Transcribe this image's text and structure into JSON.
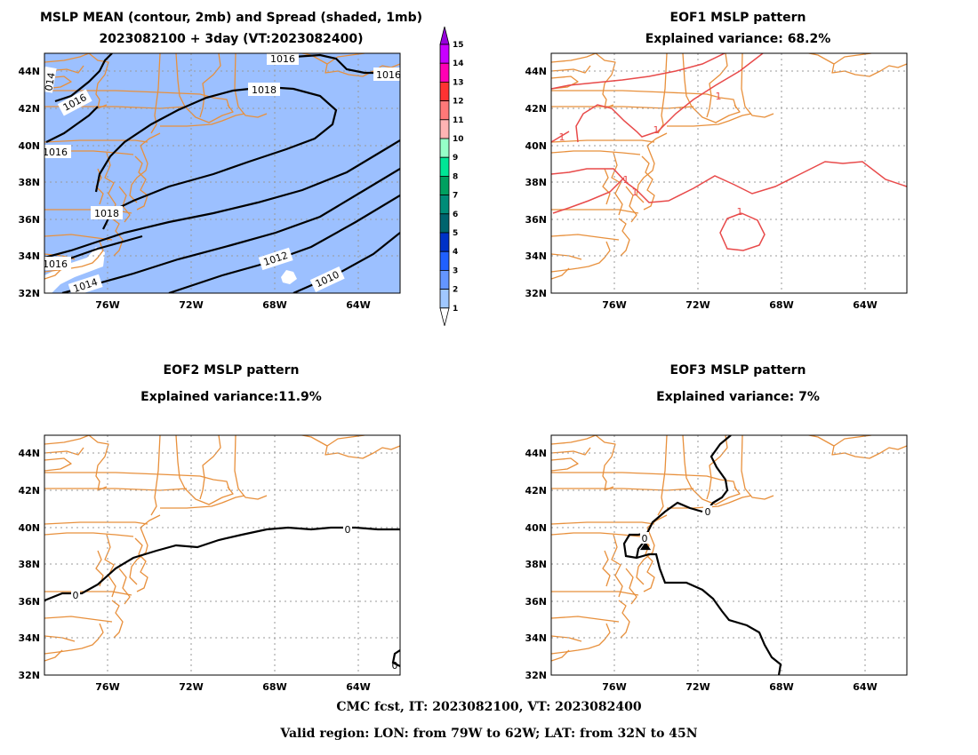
{
  "panels": [
    {
      "id": "mean",
      "title_lines": [
        "MSLP MEAN (contour, 2mb) and Spread (shaded, 1mb)",
        "2023082100 + 3day (VT:2023082400)"
      ]
    },
    {
      "id": "eof1",
      "title_lines": [
        "EOF1 MSLP pattern",
        "Explained variance: 68.2%"
      ]
    },
    {
      "id": "eof2",
      "title_lines": [
        "EOF2 MSLP pattern",
        "Explained variance:11.9%"
      ]
    },
    {
      "id": "eof3",
      "title_lines": [
        "EOF3 MSLP pattern",
        "Explained variance: 7%"
      ]
    }
  ],
  "axes": {
    "lat_ticks": [
      "32N",
      "34N",
      "36N",
      "38N",
      "40N",
      "42N",
      "44N"
    ],
    "lon_ticks": [
      "76W",
      "72W",
      "68W",
      "64W"
    ]
  },
  "colorbar": {
    "labels": [
      "1",
      "2",
      "3",
      "4",
      "5",
      "6",
      "7",
      "8",
      "9",
      "10",
      "11",
      "12",
      "13",
      "14",
      "15"
    ],
    "colors": [
      "#ffffff",
      "#a0c8ff",
      "#6496ff",
      "#2060ff",
      "#0032c8",
      "#00646e",
      "#008c78",
      "#00a060",
      "#00e696",
      "#96ffc8",
      "#ffb4b4",
      "#ff7878",
      "#ff3232",
      "#ff00b4",
      "#c800ff",
      "#9600dc"
    ]
  },
  "contour_labels": {
    "mean": [
      "1016",
      "1016",
      "1016",
      "1018",
      "1016",
      "1018",
      "1016",
      "1014",
      "1012",
      "1010",
      "014"
    ],
    "eof1": [
      "1",
      "1",
      "1",
      "1",
      "1",
      "1"
    ],
    "eof2": [
      "0",
      "0",
      "0"
    ],
    "eof3": [
      "0",
      "0"
    ]
  },
  "footer": {
    "line1": "CMC fcst, IT: 2023082100, VT: 2023082400",
    "line2": "Valid region: LON: from 79W to 62W; LAT: from 32N to 45N"
  },
  "colors": {
    "coast": "#e8903c",
    "spread": "#9cc0ff",
    "eof1": "#e84a4a",
    "contour": "#000000"
  }
}
